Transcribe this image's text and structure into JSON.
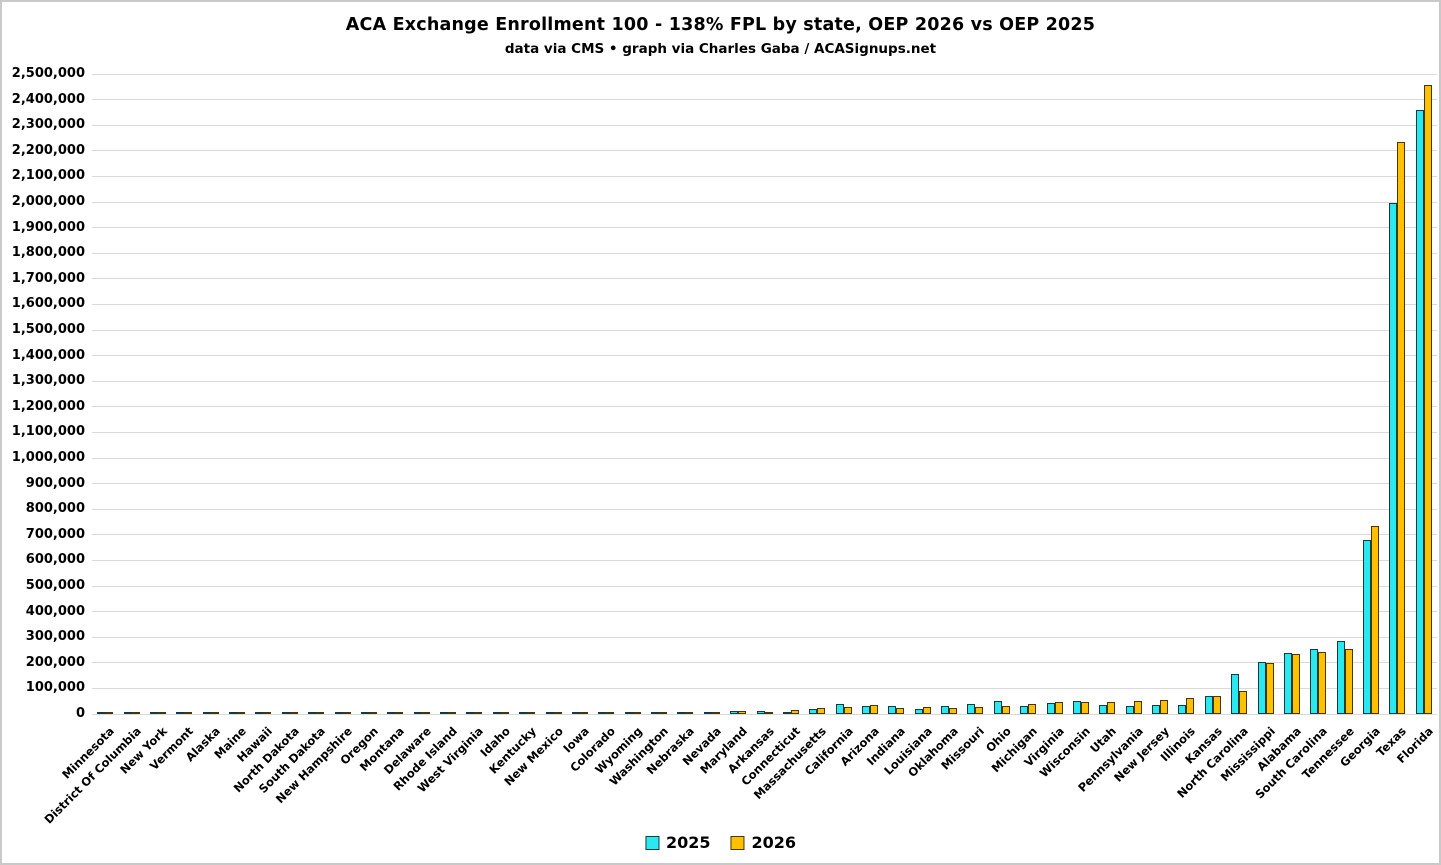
{
  "chart_data": {
    "type": "bar",
    "title": "ACA Exchange Enrollment 100 - 138% FPL by state, OEP 2026 vs OEP 2025",
    "subtitle": "data via CMS • graph via Charles Gaba / ACASignups.net",
    "xlabel": "",
    "ylabel": "",
    "ylim": [
      0,
      2500000
    ],
    "ytick_step": 100000,
    "grid": true,
    "legend_position": "bottom",
    "categories": [
      "Minnesota",
      "District Of Columbia",
      "New York",
      "Vermont",
      "Alaska",
      "Maine",
      "Hawaii",
      "North Dakota",
      "South Dakota",
      "New Hampshire",
      "Oregon",
      "Montana",
      "Delaware",
      "Rhode Island",
      "West Virginia",
      "Idaho",
      "Kentucky",
      "New Mexico",
      "Iowa",
      "Colorado",
      "Wyoming",
      "Washington",
      "Nebraska",
      "Nevada",
      "Maryland",
      "Arkansas",
      "Connecticut",
      "Massachusetts",
      "California",
      "Arizona",
      "Indiana",
      "Louisiana",
      "Oklahoma",
      "Missouri",
      "Ohio",
      "Michigan",
      "Virginia",
      "Wisconsin",
      "Utah",
      "Pennsylvania",
      "New Jersey",
      "Illinois",
      "Kansas",
      "North Carolina",
      "Mississippi",
      "Alabama",
      "South Carolina",
      "Tennessee",
      "Georgia",
      "Texas",
      "Florida"
    ],
    "series": [
      {
        "name": "2025",
        "color": "#2ae8f0",
        "values": [
          200,
          300,
          500,
          700,
          900,
          1100,
          1300,
          1500,
          1700,
          1900,
          2100,
          2400,
          5000,
          3500,
          6000,
          5000,
          6000,
          7000,
          8000,
          9000,
          10000,
          11000,
          12000,
          13000,
          15000,
          15000,
          12000,
          25000,
          42000,
          34000,
          34000,
          23000,
          36000,
          44000,
          54000,
          36000,
          48000,
          56000,
          39000,
          35000,
          38000,
          39000,
          73000,
          161000,
          207000,
          242000,
          258000,
          288000,
          682000,
          2000000,
          2365000
        ]
      },
      {
        "name": "2026",
        "color": "#ffc000",
        "values": [
          300,
          400,
          600,
          700,
          900,
          1000,
          1200,
          1400,
          1600,
          1800,
          2000,
          2200,
          2500,
          3000,
          3500,
          4500,
          5500,
          6500,
          7500,
          8500,
          9500,
          10500,
          12000,
          13000,
          14000,
          13500,
          21000,
          29000,
          30000,
          38000,
          28000,
          31000,
          29000,
          33000,
          36000,
          44000,
          52000,
          50000,
          51000,
          55000,
          60000,
          65000,
          76000,
          94000,
          202000,
          237000,
          248000,
          258000,
          738000,
          2238000,
          2461000
        ]
      }
    ]
  },
  "colors": {
    "gridline": "#dadada",
    "bar_2025": "#2ae8f0",
    "bar_2026": "#ffc000",
    "text": "#000000"
  }
}
